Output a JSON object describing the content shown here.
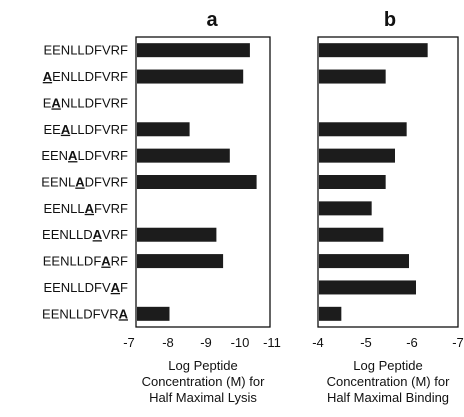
{
  "chart_data": [
    {
      "type": "bar",
      "orientation": "horizontal",
      "title": "a",
      "categories": [
        {
          "pre": "EENLLDFVRF",
          "ala": "",
          "post": ""
        },
        {
          "pre": "",
          "ala": "A",
          "post": "ENLLDFVRF"
        },
        {
          "pre": "E",
          "ala": "A",
          "post": "NLLDFVRF"
        },
        {
          "pre": "EE",
          "ala": "A",
          "post": "LLDFVRF"
        },
        {
          "pre": "EEN",
          "ala": "A",
          "post": "LDFVRF"
        },
        {
          "pre": "EENL",
          "ala": "A",
          "post": "DFVRF"
        },
        {
          "pre": "EENLL",
          "ala": "A",
          "post": "FVRF"
        },
        {
          "pre": "EENLLD",
          "ala": "A",
          "post": "VRF"
        },
        {
          "pre": "EENLLDF",
          "ala": "A",
          "post": "RF"
        },
        {
          "pre": "EENLLDFV",
          "ala": "A",
          "post": "F"
        },
        {
          "pre": "EENLLDFVR",
          "ala": "A",
          "post": ""
        }
      ],
      "values": [
        -10.4,
        -10.2,
        null,
        -8.6,
        -9.8,
        -10.6,
        null,
        -9.4,
        -9.6,
        null,
        -8.0
      ],
      "xlim": [
        -7,
        -11
      ],
      "ticks": [
        "-7",
        "-8",
        "-9",
        "-10",
        "-11"
      ],
      "xlabel": [
        "Log Peptide",
        "Concentration (M) for",
        "Half Maximal Lysis"
      ]
    },
    {
      "type": "bar",
      "orientation": "horizontal",
      "title": "b",
      "values": [
        -6.35,
        -5.45,
        null,
        -5.9,
        -5.65,
        -5.45,
        -5.15,
        -5.4,
        -5.95,
        -6.1,
        -4.5
      ],
      "xlim": [
        -4,
        -7
      ],
      "ticks": [
        "-4",
        "-5",
        "-6",
        "-7"
      ],
      "xlabel": [
        "Log Peptide",
        "Concentration (M) for",
        "Half Maximal Binding"
      ]
    }
  ]
}
